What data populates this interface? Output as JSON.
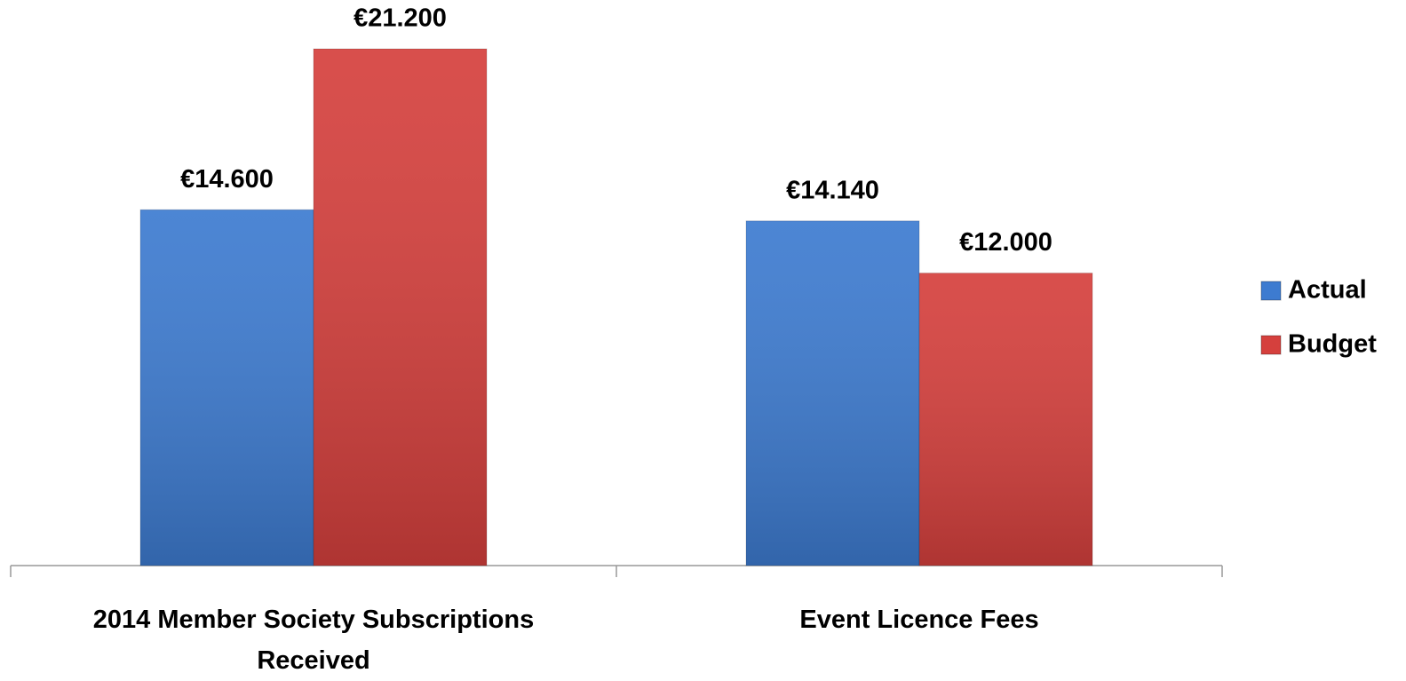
{
  "chart_data": {
    "type": "bar",
    "categories": [
      "2014 Member Society Subscriptions Received",
      "Event Licence Fees"
    ],
    "series": [
      {
        "name": "Actual",
        "color": "#3d7bd0",
        "values": [
          14600,
          14140
        ],
        "value_labels": [
          "€14.600",
          "€14.140"
        ]
      },
      {
        "name": "Budget",
        "color": "#d5403d",
        "values": [
          21200,
          12000
        ],
        "value_labels": [
          "€21.200",
          "€12.000"
        ]
      }
    ],
    "legend": "right"
  }
}
